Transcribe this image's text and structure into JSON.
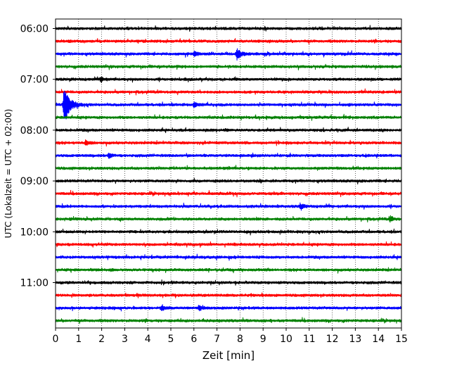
{
  "chart_data": {
    "type": "line",
    "chart_kind": "helicorder",
    "title": "",
    "xlabel": "Zeit  [min]",
    "ylabel": "UTC (Lokalzeit = UTC + 02:00)",
    "xlim": [
      0,
      15
    ],
    "xticks": [
      0,
      1,
      2,
      3,
      4,
      5,
      6,
      7,
      8,
      9,
      10,
      11,
      12,
      13,
      14,
      15
    ],
    "xgrid": "dotted vertical lines at every minute",
    "ygrid": false,
    "legend": "none",
    "trace_interval_minutes": 15,
    "trace_colors_cycle": [
      "#000000",
      "#ff0000",
      "#0000ff",
      "#008000"
    ],
    "ytick_labels": [
      "06:00",
      "07:00",
      "08:00",
      "09:00",
      "10:00",
      "11:00"
    ],
    "series": [
      {
        "start": "06:00",
        "color": "#000000",
        "events": []
      },
      {
        "start": "06:15",
        "color": "#ff0000",
        "events": []
      },
      {
        "start": "06:30",
        "color": "#0000ff",
        "events": [
          {
            "t": 7.85,
            "amplitude": "medium"
          },
          {
            "t": 6.0,
            "amplitude": "small"
          }
        ]
      },
      {
        "start": "06:45",
        "color": "#008000",
        "events": []
      },
      {
        "start": "07:00",
        "color": "#000000",
        "events": [
          {
            "t": 1.95,
            "amplitude": "small"
          }
        ]
      },
      {
        "start": "07:15",
        "color": "#ff0000",
        "events": []
      },
      {
        "start": "07:30",
        "color": "#0000ff",
        "events": [
          {
            "t": 0.35,
            "amplitude": "large"
          },
          {
            "t": 6.0,
            "amplitude": "small"
          }
        ]
      },
      {
        "start": "07:45",
        "color": "#008000",
        "events": []
      },
      {
        "start": "08:00",
        "color": "#000000",
        "events": []
      },
      {
        "start": "08:15",
        "color": "#ff0000",
        "events": [
          {
            "t": 1.3,
            "amplitude": "small"
          }
        ]
      },
      {
        "start": "08:30",
        "color": "#0000ff",
        "events": [
          {
            "t": 2.3,
            "amplitude": "small"
          }
        ]
      },
      {
        "start": "08:45",
        "color": "#008000",
        "events": []
      },
      {
        "start": "09:00",
        "color": "#000000",
        "events": []
      },
      {
        "start": "09:15",
        "color": "#ff0000",
        "events": []
      },
      {
        "start": "09:30",
        "color": "#0000ff",
        "events": [
          {
            "t": 10.6,
            "amplitude": "small"
          }
        ]
      },
      {
        "start": "09:45",
        "color": "#008000",
        "events": [
          {
            "t": 14.5,
            "amplitude": "small"
          }
        ]
      },
      {
        "start": "10:00",
        "color": "#000000",
        "events": []
      },
      {
        "start": "10:15",
        "color": "#ff0000",
        "events": []
      },
      {
        "start": "10:30",
        "color": "#0000ff",
        "events": []
      },
      {
        "start": "10:45",
        "color": "#008000",
        "events": []
      },
      {
        "start": "11:00",
        "color": "#000000",
        "events": []
      },
      {
        "start": "11:15",
        "color": "#ff0000",
        "events": []
      },
      {
        "start": "11:30",
        "color": "#0000ff",
        "events": [
          {
            "t": 4.6,
            "amplitude": "small"
          },
          {
            "t": 6.2,
            "amplitude": "small"
          }
        ]
      },
      {
        "start": "11:45",
        "color": "#008000",
        "events": []
      }
    ]
  }
}
